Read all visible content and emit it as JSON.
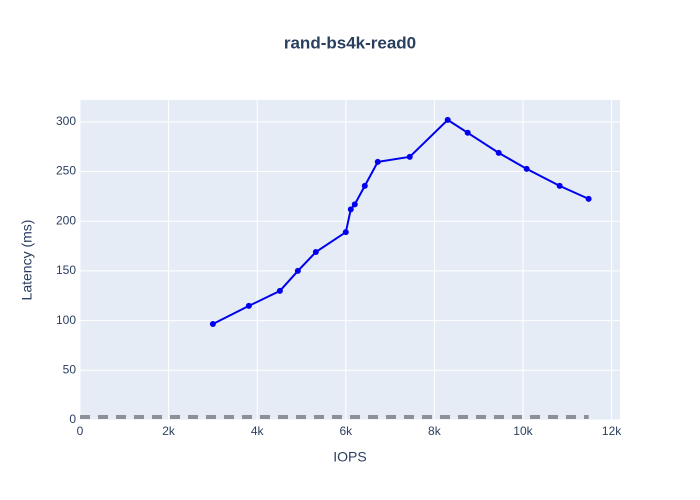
{
  "chart_data": {
    "type": "line",
    "title": "rand-bs4k-read0",
    "x_label": "IOPS",
    "y_label": "Latency (ms)",
    "series": [
      {
        "color": "#0000ee",
        "markers": true,
        "dash": false,
        "width": 2,
        "x": [
          3000,
          3812,
          4512,
          4918,
          5324,
          6000,
          6113,
          6203,
          6429,
          6722,
          7444,
          8301,
          8752,
          9452,
          10083,
          10828,
          11482
        ],
        "values": [
          96.6,
          114.8,
          129.9,
          150,
          169,
          189,
          212,
          217,
          235.6,
          259.7,
          264.8,
          302,
          289,
          268.8,
          252.7,
          235.6,
          222.5
        ]
      },
      {
        "color": "#8f8f96",
        "markers": false,
        "dash": true,
        "width": 4,
        "x": [
          0,
          11482
        ],
        "values": [
          3,
          3
        ]
      }
    ],
    "xlim": [
      0,
      12190
    ],
    "ylim": [
      0,
      322
    ],
    "xticks": [
      0,
      {
        "value": 2000,
        "label": "2k"
      },
      {
        "value": 4000,
        "label": "4k"
      },
      {
        "value": 6000,
        "label": "6k"
      },
      {
        "value": 8000,
        "label": "8k"
      },
      {
        "value": 10000,
        "label": "10k"
      },
      {
        "value": 12000,
        "label": "12k"
      }
    ],
    "yticks": [
      0,
      50,
      100,
      150,
      200,
      250,
      300
    ],
    "grid": true
  }
}
